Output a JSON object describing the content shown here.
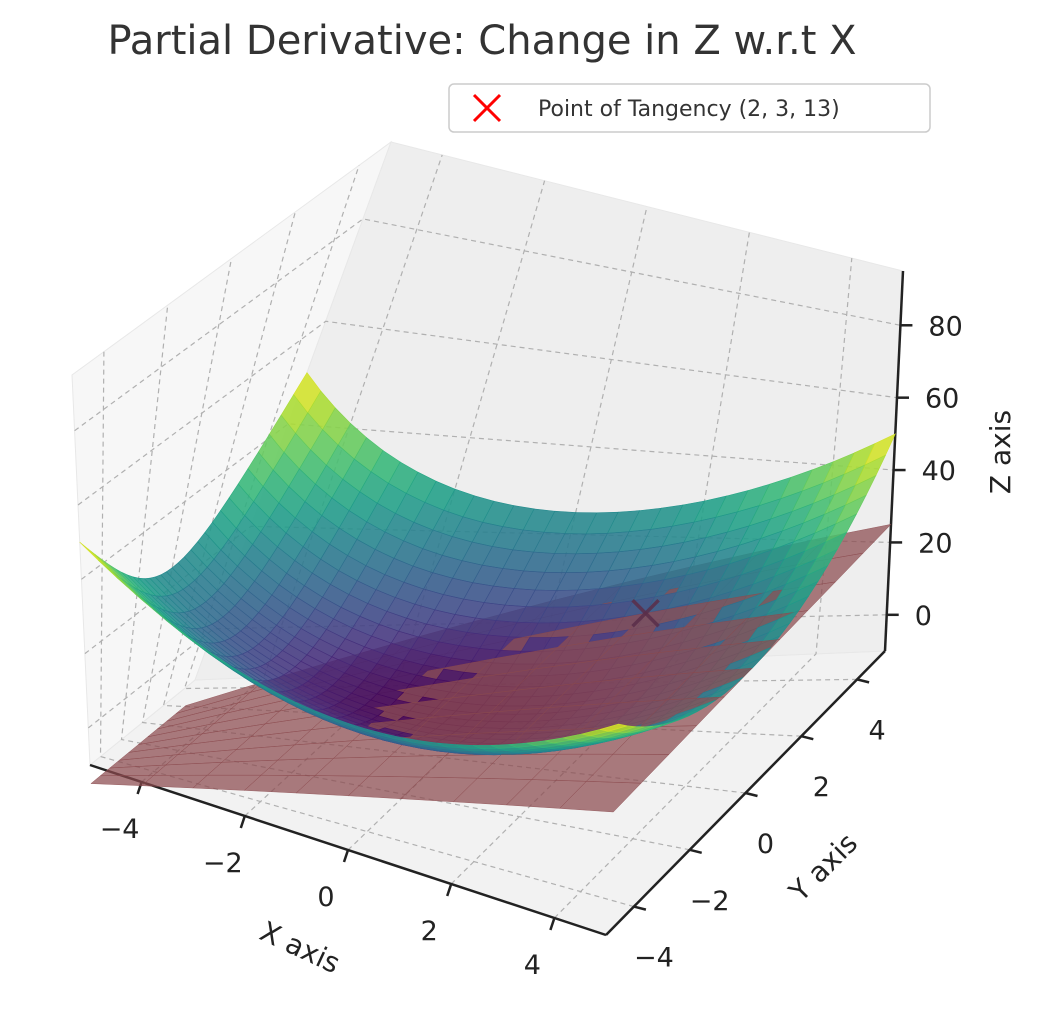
{
  "chart_data": {
    "type": "surface3d",
    "title": "Partial Derivative: Change in Z w.r.t X",
    "function": "z = x^2 + y^2",
    "xlabel": "X axis",
    "ylabel": "Y axis",
    "zlabel": "Z axis",
    "xlim": [
      -5,
      5
    ],
    "ylim": [
      -5,
      5
    ],
    "zlim": [
      -10,
      95
    ],
    "x_ticks": [
      -4,
      -2,
      0,
      2,
      4
    ],
    "y_ticks": [
      -4,
      -2,
      0,
      2,
      4
    ],
    "z_ticks": [
      0,
      20,
      40,
      60,
      80
    ],
    "tick_labels": {
      "x": [
        "−4",
        "−2",
        "0",
        "2",
        "4"
      ],
      "y": [
        "−4",
        "−2",
        "0",
        "2",
        "4"
      ],
      "z": [
        "0",
        "20",
        "40",
        "60",
        "80"
      ]
    },
    "point": {
      "x": 2,
      "y": 3,
      "z": 13,
      "marker": "x",
      "color": "#ff0000"
    },
    "tangent_plane": {
      "equation": "z = 13 + 4(x - 2)",
      "color": "#8b4a4e"
    },
    "colormap": "viridis",
    "legend": {
      "label": "Point of Tangency (2, 3, 13)",
      "placement": "top-right"
    },
    "grid": true
  }
}
